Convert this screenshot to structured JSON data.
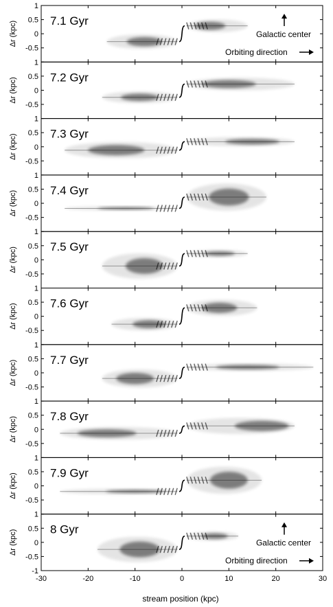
{
  "figure": {
    "xlabel": "stream position (kpc)"
  },
  "chart_data": {
    "type": "scatter",
    "title": "",
    "xlabel": "stream position (kpc)",
    "ylabel": "Δr (kpc)",
    "xlim": [
      -30,
      30
    ],
    "ylim": [
      -1,
      1
    ],
    "x_ticks": [
      -30,
      -20,
      -10,
      0,
      10,
      20,
      30
    ],
    "y_ticks": [
      -0.5,
      0,
      0.5,
      1
    ],
    "y_ticks_bottom_panel": [
      -1,
      -0.5,
      0,
      0.5,
      1
    ],
    "grid": false,
    "panels": [
      {
        "label": "7.1 Gyr",
        "trailing": {
          "x0": -16,
          "cx": -8,
          "x1": -1,
          "y": -0.28,
          "thick": 0.16
        },
        "leading": {
          "x0": 1,
          "cx": 6,
          "x1": 14,
          "y": 0.28,
          "thick": 0.14
        },
        "annotations": {
          "galactic_center": "Galactic center",
          "orbiting_direction": "Orbiting direction"
        }
      },
      {
        "label": "7.2 Gyr",
        "trailing": {
          "x0": -17,
          "cx": -9,
          "x1": -1,
          "y": -0.25,
          "thick": 0.13
        },
        "leading": {
          "x0": 1,
          "cx": 10,
          "x1": 24,
          "y": 0.22,
          "thick": 0.14
        }
      },
      {
        "label": "7.3 Gyr",
        "trailing": {
          "x0": -25,
          "cx": -14,
          "x1": -1,
          "y": -0.12,
          "thick": 0.18
        },
        "leading": {
          "x0": 1,
          "cx": 15,
          "x1": 24,
          "y": 0.18,
          "thick": 0.1
        }
      },
      {
        "label": "7.4 Gyr",
        "trailing": {
          "x0": -25,
          "cx": -12,
          "x1": -1,
          "y": -0.18,
          "thick": 0.04
        },
        "leading": {
          "x0": 1,
          "cx": 10,
          "x1": 18,
          "y": 0.22,
          "thick": 0.3
        }
      },
      {
        "label": "7.5 Gyr",
        "trailing": {
          "x0": -17,
          "cx": -8,
          "x1": -1,
          "y": -0.22,
          "thick": 0.28
        },
        "leading": {
          "x0": 1,
          "cx": 8,
          "x1": 14,
          "y": 0.22,
          "thick": 0.08
        }
      },
      {
        "label": "7.6 Gyr",
        "trailing": {
          "x0": -15,
          "cx": -7,
          "x1": -1,
          "y": -0.28,
          "thick": 0.14
        },
        "leading": {
          "x0": 1,
          "cx": 8,
          "x1": 16,
          "y": 0.3,
          "thick": 0.18
        }
      },
      {
        "label": "7.7 Gyr",
        "trailing": {
          "x0": -17,
          "cx": -10,
          "x1": -1,
          "y": -0.2,
          "thick": 0.2
        },
        "leading": {
          "x0": 1,
          "cx": 14,
          "x1": 28,
          "y": 0.2,
          "thick": 0.08
        }
      },
      {
        "label": "7.8 Gyr",
        "trailing": {
          "x0": -26,
          "cx": -16,
          "x1": -1,
          "y": -0.14,
          "thick": 0.14
        },
        "leading": {
          "x0": 1,
          "cx": 17,
          "x1": 24,
          "y": 0.12,
          "thick": 0.18
        }
      },
      {
        "label": "7.9 Gyr",
        "trailing": {
          "x0": -26,
          "cx": -10,
          "x1": -1,
          "y": -0.2,
          "thick": 0.06
        },
        "leading": {
          "x0": 1,
          "cx": 10,
          "x1": 17,
          "y": 0.2,
          "thick": 0.3
        }
      },
      {
        "label": "8 Gyr",
        "trailing": {
          "x0": -18,
          "cx": -9,
          "x1": -1,
          "y": -0.25,
          "thick": 0.28
        },
        "leading": {
          "x0": 1,
          "cx": 7,
          "x1": 12,
          "y": 0.22,
          "thick": 0.1
        },
        "annotations": {
          "galactic_center": "Galactic center",
          "orbiting_direction": "Orbiting direction"
        }
      }
    ]
  }
}
